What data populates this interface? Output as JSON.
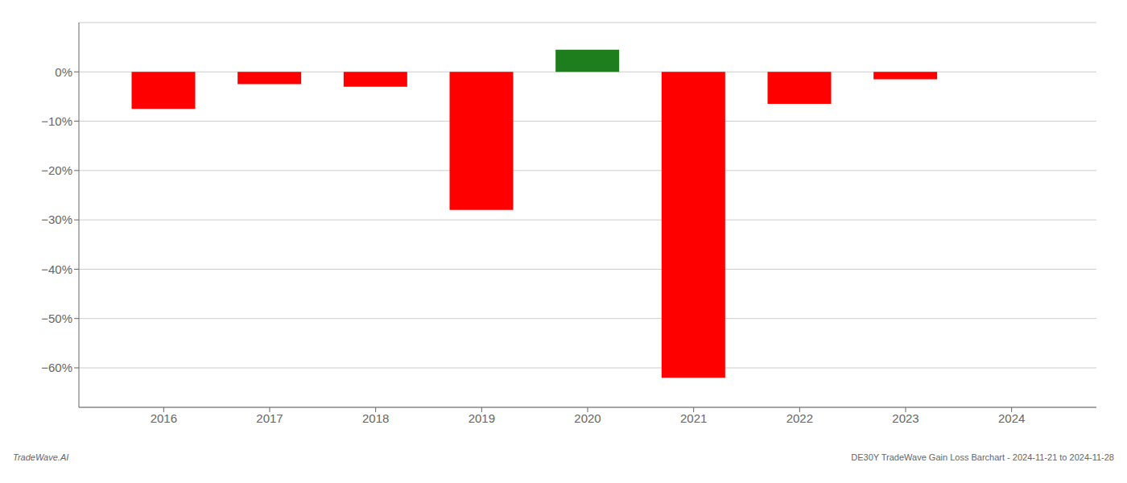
{
  "chart_data": {
    "type": "bar",
    "x": [
      2016,
      2017,
      2018,
      2019,
      2020,
      2021,
      2022,
      2023
    ],
    "values": [
      -7.5,
      -2.5,
      -3.0,
      -28.0,
      4.5,
      -62.0,
      -6.5,
      -1.5
    ],
    "colors": [
      "#ff0000",
      "#ff0000",
      "#ff0000",
      "#ff0000",
      "#1e7e1e",
      "#ff0000",
      "#ff0000",
      "#ff0000"
    ],
    "xlim": [
      2015.2,
      2024.8
    ],
    "xticks": [
      2016,
      2017,
      2018,
      2019,
      2020,
      2021,
      2022,
      2023,
      2024
    ],
    "ylim": [
      -68,
      10
    ],
    "yticks": [
      {
        "value": 0,
        "label": "0%"
      },
      {
        "value": -10,
        "label": "−10%"
      },
      {
        "value": -20,
        "label": "−20%"
      },
      {
        "value": -30,
        "label": "−30%"
      },
      {
        "value": -40,
        "label": "−40%"
      },
      {
        "value": -50,
        "label": "−50%"
      },
      {
        "value": -60,
        "label": "−60%"
      }
    ],
    "grid": true,
    "annotations": [
      "TradeWave.AI",
      "DE30Y TradeWave Gain Loss Barchart - 2024-11-21 to 2024-11-28"
    ]
  }
}
